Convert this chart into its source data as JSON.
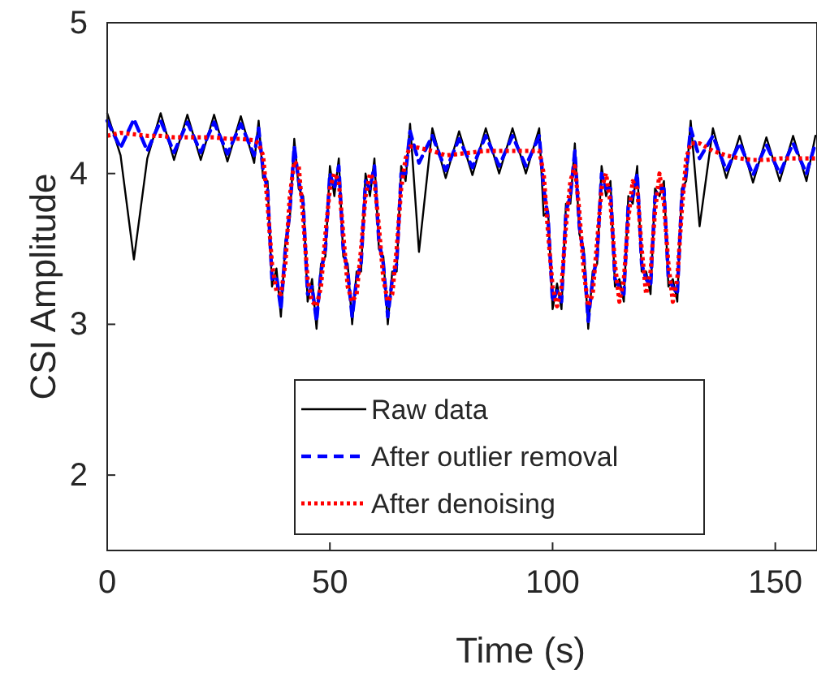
{
  "chart_data": {
    "type": "line",
    "xlabel": "Time (s)",
    "ylabel": "CSI Amplitude",
    "xlim": [
      0,
      159
    ],
    "ylim": [
      1.5,
      5
    ],
    "xticks": [
      0,
      50,
      100,
      150
    ],
    "yticks": [
      2,
      3,
      4,
      5
    ],
    "legend": "bottom",
    "grid": false,
    "x": [
      0,
      3,
      6,
      9,
      12,
      15,
      18,
      21,
      24,
      27,
      30,
      33,
      34,
      35,
      36,
      37,
      38,
      39,
      40,
      41,
      42,
      43,
      44,
      45,
      46,
      47,
      48,
      49,
      50,
      51,
      52,
      53,
      54,
      55,
      56,
      57,
      58,
      59,
      60,
      61,
      62,
      63,
      64,
      65,
      66,
      67,
      68,
      70,
      73,
      76,
      79,
      82,
      85,
      88,
      91,
      94,
      97,
      98,
      99,
      100,
      101,
      102,
      103,
      104,
      105,
      106,
      107,
      108,
      109,
      110,
      111,
      112,
      113,
      114,
      115,
      116,
      117,
      118,
      119,
      120,
      121,
      122,
      123,
      124,
      125,
      126,
      127,
      128,
      129,
      130,
      131,
      133,
      136,
      139,
      142,
      145,
      148,
      151,
      154,
      157,
      159
    ],
    "series": [
      {
        "name": "Raw data",
        "color": "#000000",
        "line_style": "solid",
        "values": [
          4.4,
          4.12,
          3.43,
          4.1,
          4.4,
          4.09,
          4.39,
          4.09,
          4.39,
          4.08,
          4.38,
          4.07,
          4.35,
          3.97,
          3.95,
          3.25,
          3.37,
          3.05,
          3.55,
          3.7,
          4.23,
          3.9,
          3.85,
          3.15,
          3.3,
          2.97,
          3.4,
          3.45,
          4.05,
          3.85,
          4.1,
          3.45,
          3.4,
          3.0,
          3.35,
          3.35,
          4.0,
          3.85,
          4.1,
          3.5,
          3.45,
          3.0,
          3.35,
          3.35,
          4.05,
          3.95,
          4.33,
          3.48,
          4.3,
          3.97,
          4.28,
          3.99,
          4.3,
          4.0,
          4.3,
          4.0,
          4.3,
          3.72,
          3.75,
          3.1,
          3.27,
          3.1,
          3.8,
          3.8,
          4.2,
          3.6,
          3.5,
          2.97,
          3.35,
          3.4,
          4.05,
          3.85,
          3.95,
          3.25,
          3.3,
          3.15,
          3.85,
          3.8,
          4.05,
          3.35,
          3.35,
          3.2,
          3.9,
          3.85,
          3.95,
          3.25,
          3.3,
          3.15,
          3.9,
          3.95,
          4.35,
          3.65,
          4.3,
          3.97,
          4.25,
          3.94,
          4.24,
          3.95,
          4.25,
          3.95,
          4.25
        ]
      },
      {
        "name": "After outlier removal",
        "color": "#0000ff",
        "line_style": "dashed",
        "values": [
          4.35,
          4.17,
          4.36,
          4.15,
          4.35,
          4.14,
          4.34,
          4.14,
          4.34,
          4.13,
          4.33,
          4.12,
          4.3,
          4.02,
          3.9,
          3.3,
          3.32,
          3.1,
          3.5,
          3.75,
          4.18,
          3.95,
          3.8,
          3.2,
          3.25,
          3.02,
          3.35,
          3.5,
          4.0,
          3.9,
          4.05,
          3.5,
          3.35,
          3.05,
          3.3,
          3.4,
          3.95,
          3.9,
          4.05,
          3.55,
          3.4,
          3.05,
          3.3,
          3.4,
          4.0,
          4.0,
          4.28,
          4.07,
          4.25,
          4.02,
          4.23,
          4.04,
          4.25,
          4.05,
          4.25,
          4.05,
          4.25,
          3.9,
          3.7,
          3.15,
          3.22,
          3.15,
          3.75,
          3.85,
          4.15,
          3.65,
          3.45,
          3.02,
          3.3,
          3.45,
          4.0,
          3.9,
          3.9,
          3.3,
          3.25,
          3.2,
          3.8,
          3.85,
          4.0,
          3.4,
          3.3,
          3.25,
          3.85,
          3.9,
          3.9,
          3.3,
          3.25,
          3.2,
          3.85,
          4.0,
          4.3,
          4.1,
          4.25,
          4.02,
          4.2,
          3.99,
          4.19,
          4.0,
          4.2,
          4.0,
          4.2
        ]
      },
      {
        "name": "After denoising",
        "color": "#ff0000",
        "line_style": "dotted",
        "values": [
          4.25,
          4.27,
          4.26,
          4.25,
          4.25,
          4.24,
          4.24,
          4.24,
          4.24,
          4.23,
          4.23,
          4.22,
          4.2,
          4.12,
          3.8,
          3.4,
          3.22,
          3.2,
          3.4,
          3.85,
          4.08,
          4.05,
          3.7,
          3.3,
          3.15,
          3.12,
          3.25,
          3.6,
          3.9,
          4.0,
          3.95,
          3.6,
          3.25,
          3.15,
          3.2,
          3.5,
          3.85,
          4.0,
          3.95,
          3.65,
          3.3,
          3.15,
          3.2,
          3.5,
          3.9,
          4.1,
          4.18,
          4.17,
          4.15,
          4.12,
          4.13,
          4.14,
          4.15,
          4.15,
          4.15,
          4.15,
          4.15,
          4.0,
          3.6,
          3.25,
          3.12,
          3.25,
          3.65,
          3.95,
          4.05,
          3.75,
          3.35,
          3.12,
          3.2,
          3.55,
          3.9,
          4.0,
          3.8,
          3.4,
          3.15,
          3.3,
          3.7,
          3.95,
          3.9,
          3.5,
          3.2,
          3.35,
          3.75,
          4.0,
          3.8,
          3.4,
          3.15,
          3.3,
          3.75,
          4.1,
          4.2,
          4.2,
          4.15,
          4.12,
          4.1,
          4.09,
          4.09,
          4.1,
          4.1,
          4.1,
          4.1
        ]
      }
    ]
  }
}
